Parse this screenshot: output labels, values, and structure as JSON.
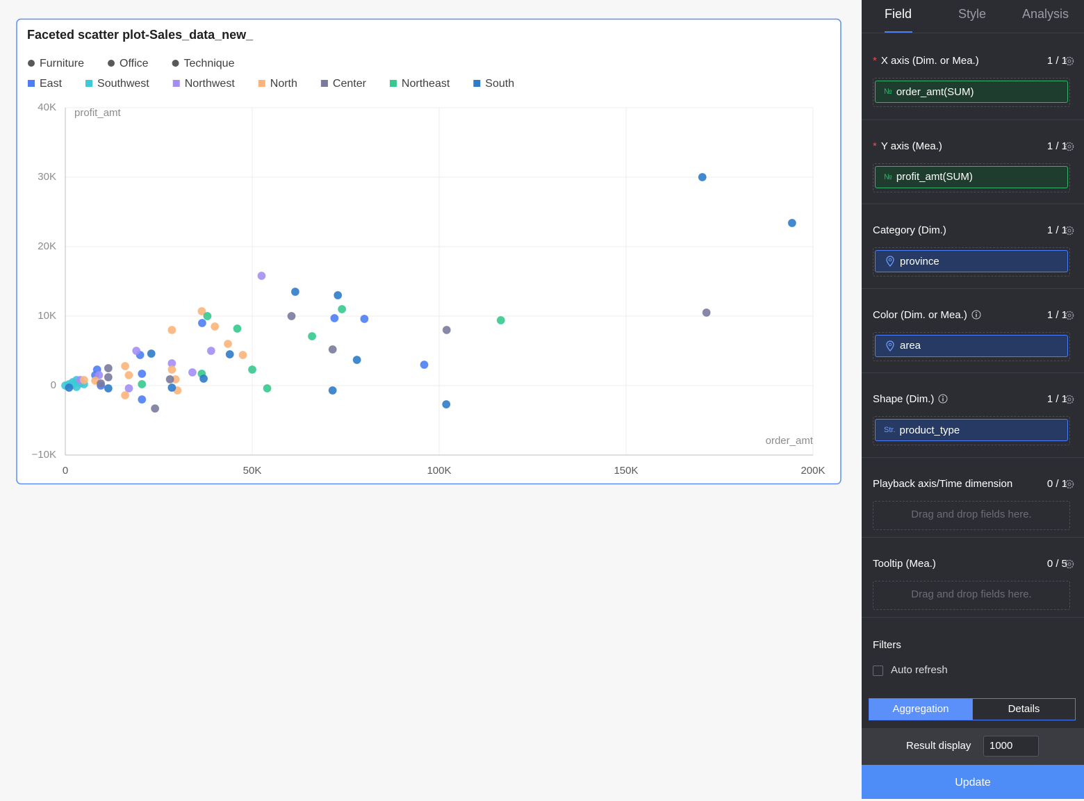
{
  "chart_data": {
    "type": "scatter",
    "title": "Faceted scatter plot-Sales_data_new_",
    "shape_legend": [
      "Furniture",
      "Office",
      "Technique"
    ],
    "y_label": "profit_amt",
    "x_label": "order_amt",
    "xlim": [
      0,
      200000
    ],
    "ylim": [
      -10000,
      40000
    ],
    "xticks": [
      0,
      {
        "value": 50000,
        "label": "50K"
      },
      {
        "value": 100000,
        "label": "100K"
      },
      {
        "value": 150000,
        "label": "150K"
      },
      {
        "value": 200000,
        "label": "200K"
      }
    ],
    "yticks": [
      {
        "value": -10000,
        "label": "−10K"
      },
      0,
      {
        "value": 10000,
        "label": "10K"
      },
      {
        "value": 20000,
        "label": "20K"
      },
      {
        "value": 30000,
        "label": "30K"
      },
      {
        "value": 40000,
        "label": "40K"
      }
    ],
    "grid": true,
    "series": [
      {
        "name": "East",
        "color": "#4e7ef5",
        "x": [
          36600,
          72000,
          80000,
          96000,
          20500,
          20500,
          8500,
          8000,
          9500,
          20000
        ],
        "values": [
          9000,
          9700,
          9600,
          3000,
          1700,
          -2000,
          2300,
          1500,
          0,
          4400
        ]
      },
      {
        "name": "Southwest",
        "color": "#3ec9d6",
        "x": [
          0,
          1000,
          2000,
          3000,
          4000,
          5000,
          3000,
          2000
        ],
        "values": [
          0,
          200,
          500,
          800,
          300,
          200,
          -200,
          100
        ]
      },
      {
        "name": "Northwest",
        "color": "#a48ef5",
        "x": [
          52500,
          19000,
          39000,
          28500,
          34000,
          17000,
          9000,
          4000
        ],
        "values": [
          15800,
          5000,
          5000,
          3200,
          1900,
          -400,
          1500,
          800
        ]
      },
      {
        "name": "North",
        "color": "#fbb57c",
        "x": [
          36500,
          40000,
          28500,
          43500,
          47500,
          16000,
          17000,
          16000,
          29500,
          30000,
          28500,
          8000,
          5000
        ],
        "values": [
          10700,
          8500,
          8000,
          6000,
          4400,
          2800,
          1500,
          -1400,
          900,
          -700,
          2300,
          700,
          800
        ]
      },
      {
        "name": "Center",
        "color": "#7a7a9e",
        "x": [
          171500,
          102000,
          60500,
          71500,
          11500,
          11500,
          9500,
          24000,
          28000
        ],
        "values": [
          10500,
          8000,
          10000,
          5200,
          2500,
          1200,
          300,
          -3300,
          900
        ]
      },
      {
        "name": "Northeast",
        "color": "#36c98f",
        "x": [
          116500,
          74000,
          66000,
          46000,
          38000,
          50000,
          54000,
          36500,
          20500
        ],
        "values": [
          9400,
          11000,
          7100,
          8200,
          10000,
          2300,
          -400,
          1700,
          200
        ]
      },
      {
        "name": "South",
        "color": "#2e7cc9",
        "x": [
          170400,
          194400,
          72900,
          61500,
          78000,
          101900,
          71500,
          44000,
          37000,
          23000,
          11500,
          28500,
          1000
        ],
        "values": [
          30000,
          23400,
          13000,
          13500,
          3700,
          -2700,
          -700,
          4500,
          1000,
          4600,
          -400,
          -300,
          -300
        ]
      }
    ]
  },
  "panel": {
    "tabs": [
      "Field",
      "Style",
      "Analysis"
    ],
    "sections": [
      {
        "marker": "*",
        "label": "X axis (Dim. or Mea.)",
        "count": "1 / 1",
        "field": {
          "icon": "№",
          "name": "order_amt(SUM)",
          "kind": "num"
        }
      },
      {
        "marker": "*",
        "label": "Y axis (Mea.)",
        "count": "1 / 1",
        "field": {
          "icon": "№",
          "name": "profit_amt(SUM)",
          "kind": "num"
        }
      },
      {
        "label": "Category (Dim.)",
        "count": "1 / 1",
        "field": {
          "name": "province",
          "kind": "dim"
        }
      },
      {
        "label": "Color (Dim. or Mea.)",
        "info": true,
        "count": "1 / 1",
        "field": {
          "name": "area",
          "kind": "dim"
        }
      },
      {
        "label": "Shape (Dim.)",
        "info": true,
        "count": "1 / 1",
        "field": {
          "icon": "Str.",
          "name": "product_type",
          "kind": "dim"
        }
      },
      {
        "label": "Playback axis/Time dimension",
        "count": "0 / 1",
        "placeholder": "Drag and drop fields here."
      },
      {
        "label": "Tooltip (Mea.)",
        "count": "0 / 5",
        "placeholder": "Drag and drop fields here."
      }
    ],
    "filters": "Filters",
    "auto_refresh": "Auto refresh",
    "modes": [
      "Aggregation",
      "Details"
    ],
    "result_label": "Result display",
    "result_value": "1000",
    "update": "Update"
  }
}
